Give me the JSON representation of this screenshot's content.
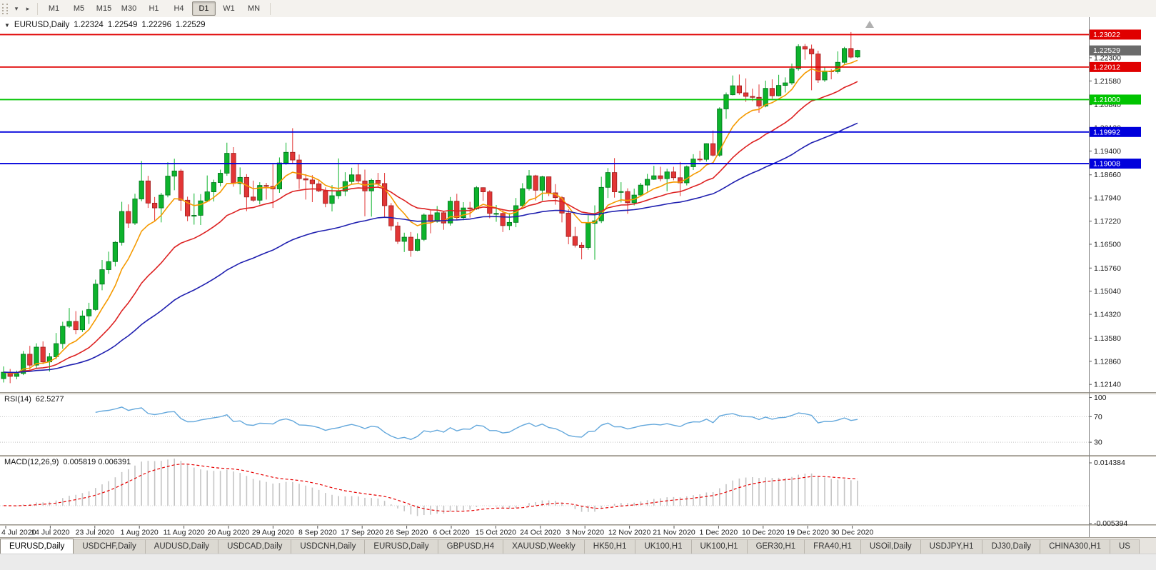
{
  "toolbar": {
    "icons": [
      {
        "name": "toolbar-menu-arrow-icon",
        "glyph": "▾"
      },
      {
        "name": "toolbar-expand-arrow-icon",
        "glyph": "▸"
      }
    ],
    "timeframes": [
      {
        "label": "M1",
        "active": false
      },
      {
        "label": "M5",
        "active": false
      },
      {
        "label": "M15",
        "active": false
      },
      {
        "label": "M30",
        "active": false
      },
      {
        "label": "H1",
        "active": false
      },
      {
        "label": "H4",
        "active": false
      },
      {
        "label": "D1",
        "active": true
      },
      {
        "label": "W1",
        "active": false
      },
      {
        "label": "MN",
        "active": false
      }
    ]
  },
  "chart_header": {
    "dropdown_glyph": "▼",
    "symbol": "EURUSD,Daily",
    "open": "1.22324",
    "high": "1.22549",
    "low": "1.22296",
    "close": "1.22529"
  },
  "chart_data": {
    "type": "candlestick",
    "symbol": "EURUSD",
    "timeframe": "Daily",
    "title": "EURUSD,Daily",
    "current_bar": {
      "open": 1.22324,
      "high": 1.22549,
      "low": 1.22296,
      "close": 1.22529
    },
    "price_range": [
      1.119,
      1.2352
    ],
    "up_color": "#0db32c",
    "up_border": "#00711c",
    "down_color": "#e23636",
    "down_border": "#9c1f1f",
    "y_ticks": [
      "1.22300",
      "1.21580",
      "1.20840",
      "1.20120",
      "1.19400",
      "1.18660",
      "1.17940",
      "1.17220",
      "1.16500",
      "1.15760",
      "1.15040",
      "1.14320",
      "1.13580",
      "1.12860",
      "1.12140"
    ],
    "x_labels": [
      "4 Jul 2020",
      "14 Jul 2020",
      "23 Jul 2020",
      "1 Aug 2020",
      "11 Aug 2020",
      "20 Aug 2020",
      "29 Aug 2020",
      "8 Sep 2020",
      "17 Sep 2020",
      "26 Sep 2020",
      "6 Oct 2020",
      "15 Oct 2020",
      "24 Oct 2020",
      "3 Nov 2020",
      "12 Nov 2020",
      "21 Nov 2020",
      "1 Dec 2020",
      "10 Dec 2020",
      "19 Dec 2020",
      "30 Dec 2020"
    ],
    "hlines": [
      {
        "price": 1.23022,
        "color": "#e00000",
        "label": "1.23022"
      },
      {
        "price": 1.22012,
        "color": "#e00000",
        "label": "1.22012"
      },
      {
        "price": 1.21,
        "color": "#00c400",
        "label": "1.21000"
      },
      {
        "price": 1.19992,
        "color": "#0000dc",
        "label": "1.19992"
      },
      {
        "price": 1.19008,
        "color": "#0000dc",
        "label": "1.19008"
      }
    ],
    "current_price_tag": {
      "price": 1.22529,
      "label": "1.22529",
      "color": "#6b6b6b"
    },
    "moving_averages": [
      {
        "name": "fast",
        "period": 8,
        "color": "#f59a00"
      },
      {
        "name": "medium",
        "period": 21,
        "color": "#dd2222"
      },
      {
        "name": "slow",
        "period": 50,
        "color": "#2020b0"
      }
    ],
    "indicators": {
      "rsi": {
        "label": "RSI(14)",
        "value": "62.5277",
        "period": 14,
        "color": "#64a8dc",
        "levels": [
          70,
          30
        ],
        "axis_labels": [
          "100",
          "70",
          "30"
        ],
        "range": [
          10,
          105
        ]
      },
      "macd": {
        "label": "MACD(12,26,9)",
        "values": "0.005819 0.006391",
        "fast": 12,
        "slow": 26,
        "signal_period": 9,
        "bar_color": "#c4c4c4",
        "signal_color": "#e60000",
        "axis_labels": [
          "0.014384",
          "-0.005394"
        ],
        "range": [
          -0.0056,
          0.0146
        ]
      }
    },
    "candles": [
      [
        1.1232,
        1.127,
        1.122,
        1.1252
      ],
      [
        1.1252,
        1.1262,
        1.1218,
        1.1239
      ],
      [
        1.1239,
        1.1257,
        1.123,
        1.1248
      ],
      [
        1.1248,
        1.1318,
        1.1243,
        1.1308
      ],
      [
        1.1308,
        1.1334,
        1.126,
        1.1274
      ],
      [
        1.1274,
        1.1342,
        1.1263,
        1.133
      ],
      [
        1.133,
        1.1348,
        1.1277,
        1.1284
      ],
      [
        1.1284,
        1.1312,
        1.1254,
        1.13
      ],
      [
        1.13,
        1.1374,
        1.1292,
        1.1341
      ],
      [
        1.1341,
        1.1409,
        1.1325,
        1.1395
      ],
      [
        1.1395,
        1.1452,
        1.139,
        1.141
      ],
      [
        1.141,
        1.1442,
        1.137,
        1.1384
      ],
      [
        1.1384,
        1.1444,
        1.1377,
        1.1427
      ],
      [
        1.1427,
        1.1468,
        1.1402,
        1.1447
      ],
      [
        1.1447,
        1.154,
        1.1443,
        1.1526
      ],
      [
        1.1526,
        1.1601,
        1.1507,
        1.1571
      ],
      [
        1.1571,
        1.1627,
        1.1558,
        1.1596
      ],
      [
        1.1596,
        1.166,
        1.1581,
        1.1656
      ],
      [
        1.1656,
        1.1782,
        1.1646,
        1.1752
      ],
      [
        1.1752,
        1.1774,
        1.1701,
        1.1716
      ],
      [
        1.1716,
        1.1807,
        1.171,
        1.1791
      ],
      [
        1.1791,
        1.1909,
        1.1784,
        1.1847
      ],
      [
        1.1847,
        1.1863,
        1.1763,
        1.1778
      ],
      [
        1.1778,
        1.1797,
        1.1723,
        1.1763
      ],
      [
        1.1763,
        1.181,
        1.1718,
        1.1803
      ],
      [
        1.1803,
        1.1905,
        1.1796,
        1.1862
      ],
      [
        1.1862,
        1.1916,
        1.1818,
        1.1878
      ],
      [
        1.1878,
        1.1884,
        1.1754,
        1.1787
      ],
      [
        1.1787,
        1.1798,
        1.1722,
        1.1738
      ],
      [
        1.1738,
        1.1808,
        1.1711,
        1.174
      ],
      [
        1.174,
        1.1806,
        1.171,
        1.1785
      ],
      [
        1.1785,
        1.1864,
        1.1782,
        1.1813
      ],
      [
        1.1813,
        1.1851,
        1.1783,
        1.1842
      ],
      [
        1.1842,
        1.1882,
        1.183,
        1.1871
      ],
      [
        1.1871,
        1.1966,
        1.1863,
        1.1933
      ],
      [
        1.1933,
        1.1952,
        1.1829,
        1.1839
      ],
      [
        1.1839,
        1.1889,
        1.1805,
        1.1858
      ],
      [
        1.1858,
        1.1868,
        1.1753,
        1.1797
      ],
      [
        1.1797,
        1.1848,
        1.1782,
        1.1787
      ],
      [
        1.1787,
        1.1843,
        1.1774,
        1.1833
      ],
      [
        1.1833,
        1.1841,
        1.1789,
        1.183
      ],
      [
        1.183,
        1.1902,
        1.1763,
        1.1822
      ],
      [
        1.1822,
        1.192,
        1.181,
        1.1903
      ],
      [
        1.1903,
        1.1966,
        1.1897,
        1.1936
      ],
      [
        1.1936,
        1.2011,
        1.1901,
        1.1912
      ],
      [
        1.1912,
        1.1929,
        1.1822,
        1.1854
      ],
      [
        1.1854,
        1.1868,
        1.1789,
        1.185
      ],
      [
        1.185,
        1.1865,
        1.1781,
        1.1838
      ],
      [
        1.1838,
        1.1849,
        1.1812,
        1.1816
      ],
      [
        1.1816,
        1.1827,
        1.1765,
        1.1777
      ],
      [
        1.1777,
        1.1834,
        1.1752,
        1.1801
      ],
      [
        1.1801,
        1.1917,
        1.1791,
        1.1815
      ],
      [
        1.1815,
        1.1874,
        1.18,
        1.1845
      ],
      [
        1.1845,
        1.1888,
        1.1838,
        1.1866
      ],
      [
        1.1866,
        1.19,
        1.1839,
        1.1847
      ],
      [
        1.1847,
        1.1882,
        1.1737,
        1.1816
      ],
      [
        1.1816,
        1.1854,
        1.1736,
        1.1849
      ],
      [
        1.1849,
        1.1872,
        1.1827,
        1.1839
      ],
      [
        1.1839,
        1.1872,
        1.1732,
        1.177
      ],
      [
        1.177,
        1.1778,
        1.1693,
        1.1707
      ],
      [
        1.1707,
        1.1719,
        1.1651,
        1.1659
      ],
      [
        1.1659,
        1.1686,
        1.1626,
        1.1672
      ],
      [
        1.1672,
        1.1688,
        1.1611,
        1.1631
      ],
      [
        1.1631,
        1.1684,
        1.1628,
        1.1665
      ],
      [
        1.1665,
        1.1746,
        1.166,
        1.1741
      ],
      [
        1.1741,
        1.1755,
        1.1684,
        1.1721
      ],
      [
        1.1721,
        1.1769,
        1.1717,
        1.1748
      ],
      [
        1.1748,
        1.1751,
        1.1695,
        1.1716
      ],
      [
        1.1716,
        1.1797,
        1.1708,
        1.1784
      ],
      [
        1.1784,
        1.1807,
        1.1725,
        1.1733
      ],
      [
        1.1733,
        1.1781,
        1.1725,
        1.1763
      ],
      [
        1.1763,
        1.1782,
        1.1733,
        1.176
      ],
      [
        1.176,
        1.1831,
        1.1757,
        1.1826
      ],
      [
        1.1826,
        1.1827,
        1.1785,
        1.1813
      ],
      [
        1.1813,
        1.1818,
        1.1731,
        1.1746
      ],
      [
        1.1746,
        1.1772,
        1.172,
        1.1746
      ],
      [
        1.1746,
        1.1758,
        1.1688,
        1.1708
      ],
      [
        1.1708,
        1.1747,
        1.1694,
        1.1718
      ],
      [
        1.1718,
        1.1794,
        1.1703,
        1.177
      ],
      [
        1.177,
        1.184,
        1.176,
        1.1823
      ],
      [
        1.1823,
        1.1881,
        1.1817,
        1.1863
      ],
      [
        1.1863,
        1.1866,
        1.1786,
        1.1818
      ],
      [
        1.1818,
        1.1863,
        1.1786,
        1.186
      ],
      [
        1.186,
        1.1861,
        1.18,
        1.181
      ],
      [
        1.181,
        1.1837,
        1.1773,
        1.1795
      ],
      [
        1.1795,
        1.18,
        1.1718,
        1.1747
      ],
      [
        1.1747,
        1.1759,
        1.165,
        1.1674
      ],
      [
        1.1674,
        1.1704,
        1.164,
        1.1647
      ],
      [
        1.1647,
        1.1656,
        1.1603,
        1.164
      ],
      [
        1.164,
        1.174,
        1.1633,
        1.1715
      ],
      [
        1.1715,
        1.1771,
        1.1602,
        1.1723
      ],
      [
        1.1723,
        1.186,
        1.1716,
        1.1827
      ],
      [
        1.1827,
        1.1887,
        1.1794,
        1.1873
      ],
      [
        1.1873,
        1.1918,
        1.1795,
        1.1813
      ],
      [
        1.1813,
        1.1843,
        1.178,
        1.1814
      ],
      [
        1.1814,
        1.1824,
        1.1745,
        1.1779
      ],
      [
        1.1779,
        1.1823,
        1.1771,
        1.1803
      ],
      [
        1.1803,
        1.1841,
        1.1799,
        1.1834
      ],
      [
        1.1834,
        1.1869,
        1.1814,
        1.1852
      ],
      [
        1.1852,
        1.1894,
        1.185,
        1.1863
      ],
      [
        1.1863,
        1.1891,
        1.1846,
        1.1854
      ],
      [
        1.1854,
        1.1885,
        1.1815,
        1.1875
      ],
      [
        1.1875,
        1.1891,
        1.1849,
        1.1857
      ],
      [
        1.1857,
        1.1906,
        1.18,
        1.1841
      ],
      [
        1.1841,
        1.1895,
        1.1833,
        1.1891
      ],
      [
        1.1891,
        1.193,
        1.1881,
        1.1915
      ],
      [
        1.1915,
        1.1941,
        1.1906,
        1.1914
      ],
      [
        1.1914,
        1.1964,
        1.1907,
        1.1963
      ],
      [
        1.1963,
        1.2004,
        1.1923,
        1.1927
      ],
      [
        1.1927,
        1.2076,
        1.1922,
        1.2071
      ],
      [
        1.2071,
        1.2122,
        1.204,
        1.2115
      ],
      [
        1.2115,
        1.2175,
        1.2113,
        1.2143
      ],
      [
        1.2143,
        1.2178,
        1.2115,
        1.2121
      ],
      [
        1.2121,
        1.2166,
        1.2093,
        1.211
      ],
      [
        1.211,
        1.2134,
        1.2095,
        1.2107
      ],
      [
        1.2107,
        1.2147,
        1.2059,
        1.208
      ],
      [
        1.208,
        1.2159,
        1.2076,
        1.2135
      ],
      [
        1.2135,
        1.2163,
        1.2103,
        1.2112
      ],
      [
        1.2112,
        1.2177,
        1.211,
        1.2144
      ],
      [
        1.2144,
        1.2169,
        1.2122,
        1.2152
      ],
      [
        1.2152,
        1.2212,
        1.2146,
        1.2196
      ],
      [
        1.2196,
        1.2272,
        1.219,
        1.2265
      ],
      [
        1.2265,
        1.2273,
        1.2224,
        1.2257
      ],
      [
        1.2257,
        1.2271,
        1.2129,
        1.2242
      ],
      [
        1.2242,
        1.2252,
        1.2152,
        1.2161
      ],
      [
        1.2161,
        1.2202,
        1.2155,
        1.2189
      ],
      [
        1.2189,
        1.2195,
        1.2163,
        1.2187
      ],
      [
        1.2187,
        1.225,
        1.2181,
        1.2216
      ],
      [
        1.2216,
        1.2264,
        1.221,
        1.2259
      ],
      [
        1.2259,
        1.231,
        1.2228,
        1.2232
      ],
      [
        1.22324,
        1.22549,
        1.22296,
        1.22529
      ]
    ]
  },
  "tabs": [
    {
      "label": "EURUSD,Daily",
      "active": true
    },
    {
      "label": "USDCHF,Daily",
      "active": false
    },
    {
      "label": "AUDUSD,Daily",
      "active": false
    },
    {
      "label": "USDCAD,Daily",
      "active": false
    },
    {
      "label": "USDCNH,Daily",
      "active": false
    },
    {
      "label": "EURUSD,Daily",
      "active": false
    },
    {
      "label": "GBPUSD,H4",
      "active": false
    },
    {
      "label": "XAUUSD,Weekly",
      "active": false
    },
    {
      "label": "HK50,H1",
      "active": false
    },
    {
      "label": "UK100,H1",
      "active": false
    },
    {
      "label": "UK100,H1",
      "active": false
    },
    {
      "label": "GER30,H1",
      "active": false
    },
    {
      "label": "FRA40,H1",
      "active": false
    },
    {
      "label": "USOil,Daily",
      "active": false
    },
    {
      "label": "USDJPY,H1",
      "active": false
    },
    {
      "label": "DJ30,Daily",
      "active": false
    },
    {
      "label": "CHINA300,H1",
      "active": false
    },
    {
      "label": "US",
      "active": false
    }
  ]
}
